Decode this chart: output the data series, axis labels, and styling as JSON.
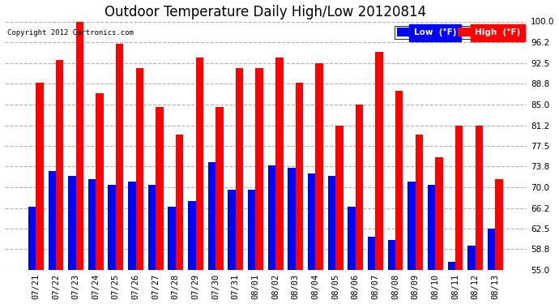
{
  "title": "Outdoor Temperature Daily High/Low 20120814",
  "copyright": "Copyright 2012 Cartronics.com",
  "legend_low": "Low  (°F)",
  "legend_high": "High  (°F)",
  "dates": [
    "07/21",
    "07/22",
    "07/23",
    "07/24",
    "07/25",
    "07/26",
    "07/27",
    "07/28",
    "07/29",
    "07/30",
    "07/31",
    "08/01",
    "08/02",
    "08/03",
    "08/04",
    "08/05",
    "08/06",
    "08/07",
    "08/08",
    "08/09",
    "08/10",
    "08/11",
    "08/12",
    "08/13"
  ],
  "highs": [
    89.0,
    93.0,
    100.0,
    87.0,
    96.0,
    91.5,
    84.5,
    79.5,
    93.5,
    84.5,
    91.5,
    91.5,
    93.5,
    89.0,
    92.5,
    81.2,
    85.0,
    94.5,
    87.5,
    79.5,
    75.5,
    81.2,
    81.2,
    71.5
  ],
  "lows": [
    66.5,
    73.0,
    72.0,
    71.5,
    70.5,
    71.0,
    70.5,
    66.5,
    67.5,
    74.5,
    69.5,
    69.5,
    74.0,
    73.5,
    72.5,
    72.0,
    66.5,
    61.0,
    60.5,
    71.0,
    70.5,
    56.5,
    59.5,
    62.5
  ],
  "high_color": "#ff0000",
  "low_color": "#0000ff",
  "bg_color": "#ffffff",
  "plot_bg_color": "#ffffff",
  "grid_color": "#b0b0b0",
  "title_fontsize": 12,
  "tick_fontsize": 7.5,
  "ylim_min": 55.0,
  "ylim_max": 100.0,
  "yticks": [
    55.0,
    58.8,
    62.5,
    66.2,
    70.0,
    73.8,
    77.5,
    81.2,
    85.0,
    88.8,
    92.5,
    96.2,
    100.0
  ]
}
